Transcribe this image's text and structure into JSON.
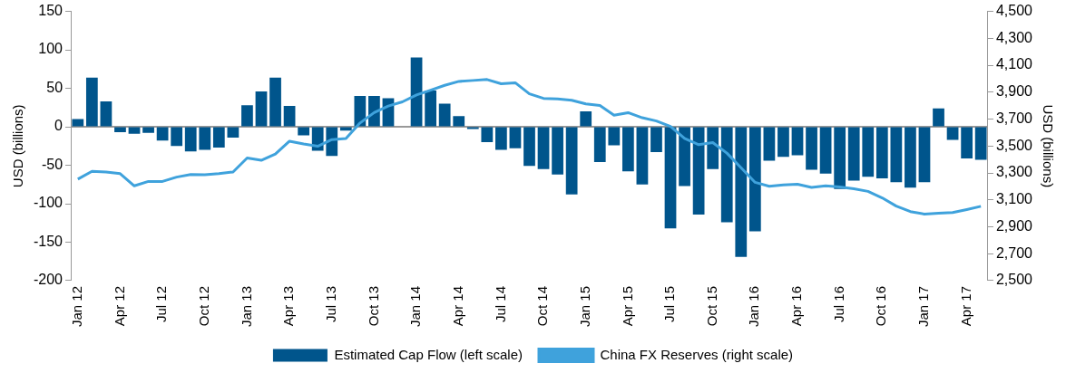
{
  "chart_data": {
    "type": "bar",
    "ylabel": "USD (billions)",
    "y2label": "USD (billions)",
    "categories": [
      "Jan 12",
      null,
      null,
      "Apr 12",
      null,
      null,
      "Jul 12",
      null,
      null,
      "Oct 12",
      null,
      null,
      "Jan 13",
      null,
      null,
      "Apr 13",
      null,
      null,
      "Jul 13",
      null,
      null,
      "Oct 13",
      null,
      null,
      "Jan 14",
      null,
      null,
      "Apr 14",
      null,
      null,
      "Jul 14",
      null,
      null,
      "Oct 14",
      null,
      null,
      "Jan 15",
      null,
      null,
      "Apr 15",
      null,
      null,
      "Jul 15",
      null,
      null,
      "Oct 15",
      null,
      null,
      "Jan 16",
      null,
      null,
      "Apr 16",
      null,
      null,
      "Jul 16",
      null,
      null,
      "Oct 16",
      null,
      null,
      "Jan 17",
      null,
      null,
      "Apr 17",
      null
    ],
    "series": [
      {
        "name": "Estimated Cap Flow (left scale)",
        "color": "#00558c",
        "values": [
          10,
          64,
          33,
          -7,
          -9,
          -8,
          -18,
          -25,
          -32,
          -30,
          -27,
          -14,
          28,
          46,
          64,
          27,
          -11,
          -31,
          -38,
          -5,
          40,
          40,
          37,
          null,
          90,
          47,
          30,
          14,
          -3,
          -20,
          -30,
          -28,
          -51,
          -55,
          -62,
          -88,
          20,
          -46,
          -24,
          -58,
          -75,
          -33,
          -132,
          -77,
          -114,
          -55,
          -124,
          -169,
          -136,
          -44,
          -39,
          -37,
          -56,
          -61,
          -81,
          -70,
          -65,
          -67,
          -72,
          -79,
          -72,
          24,
          -17,
          -41,
          -43
        ]
      },
      {
        "name": "China FX Reserves (right scale)",
        "type": "line",
        "axis": "y2",
        "color": "#3fa2dc",
        "values": [
          3254,
          3312,
          3307,
          3295,
          3204,
          3237,
          3237,
          3269,
          3288,
          3286,
          3295,
          3307,
          3411,
          3394,
          3440,
          3536,
          3515,
          3498,
          3548,
          3556,
          3671,
          3748,
          3797,
          3828,
          3879,
          3915,
          3951,
          3980,
          3987,
          3994,
          3963,
          3970,
          3888,
          3854,
          3850,
          3840,
          3813,
          3801,
          3729,
          3748,
          3710,
          3686,
          3645,
          3556,
          3510,
          3525,
          3447,
          3339,
          3230,
          3201,
          3211,
          3216,
          3192,
          3204,
          3196,
          3182,
          3163,
          3115,
          3054,
          3013,
          2994,
          3001,
          3006,
          3028,
          3052
        ]
      }
    ],
    "ylim": [
      -200,
      150
    ],
    "yticks": [
      -200,
      -150,
      -100,
      -50,
      0,
      50,
      100,
      150
    ],
    "y2lim": [
      2500,
      4500
    ],
    "y2ticks": [
      {
        "value": 2500,
        "label": "2,500"
      },
      {
        "value": 2700,
        "label": "2,700"
      },
      {
        "value": 2900,
        "label": "2,900"
      },
      {
        "value": 3100,
        "label": "3,100"
      },
      {
        "value": 3300,
        "label": "3,300"
      },
      {
        "value": 3500,
        "label": "3,500"
      },
      {
        "value": 3700,
        "label": "3,700"
      },
      {
        "value": 3900,
        "label": "3,900"
      },
      {
        "value": 4100,
        "label": "4,100"
      },
      {
        "value": 4300,
        "label": "4,300"
      },
      {
        "value": 4500,
        "label": "4,500"
      }
    ],
    "legend": "bottom",
    "marker": "none",
    "line_style": "solid"
  }
}
